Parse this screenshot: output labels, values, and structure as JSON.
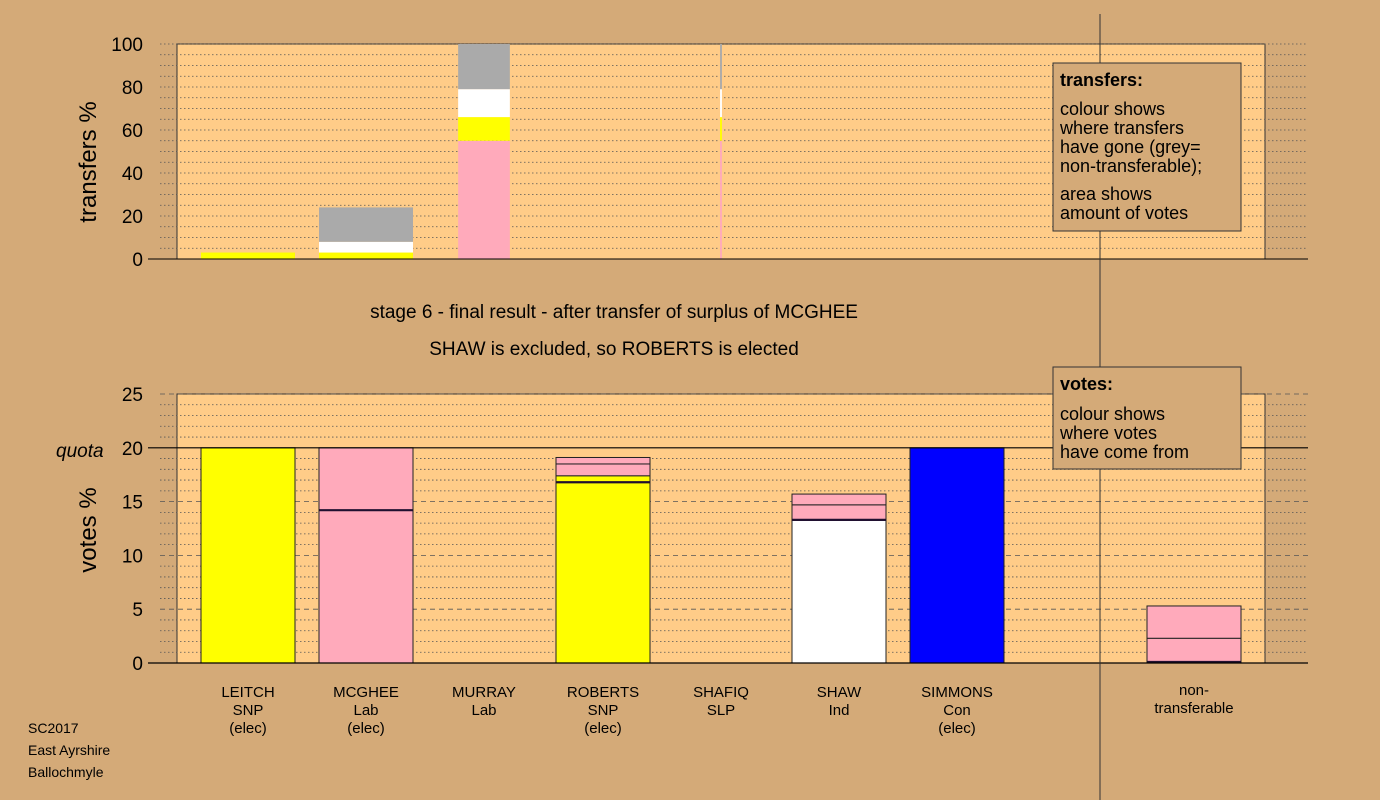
{
  "stage_title": "stage 6 - final result - after transfer of surplus of MCGHEE",
  "stage_subtitle": "SHAW is excluded, so ROBERTS is elected",
  "footer": [
    "SC2017",
    "East Ayrshire",
    "Ballochmyle"
  ],
  "colors": {
    "background": "#d4aa78",
    "plot": "#ffcc88",
    "SNP": "#ffff00",
    "Lab": "#ffaabb",
    "Ind": "#ffffff",
    "Con": "#0000ff",
    "non_transferable": "#aaaaaa"
  },
  "transfers_legend": {
    "title": "transfers:",
    "lines_1": [
      "colour shows",
      "where transfers",
      "have gone (grey=",
      "non-transferable);"
    ],
    "lines_2": [
      "area shows",
      "amount of votes"
    ]
  },
  "votes_legend": {
    "title": "votes:",
    "lines": [
      "colour shows",
      "where votes",
      "have come from"
    ]
  },
  "chart_data": [
    {
      "type": "bar",
      "title": "",
      "ylabel": "transfers %",
      "ylim": [
        0,
        100
      ],
      "yticks": [
        0,
        20,
        40,
        60,
        80,
        100
      ],
      "grid": "dotted",
      "bars": [
        {
          "candidate": "LEITCH",
          "width": 1,
          "segments": [
            {
              "party": "SNP",
              "value": 3
            }
          ]
        },
        {
          "candidate": "MCGHEE",
          "width": 1,
          "segments": [
            {
              "party": "SNP",
              "value": 3
            },
            {
              "party": "Ind",
              "value": 5
            },
            {
              "party": "non_transferable",
              "value": 16
            }
          ]
        },
        {
          "candidate": "MURRAY",
          "width": 0.55,
          "segments": [
            {
              "party": "Lab",
              "value": 55
            },
            {
              "party": "SNP",
              "value": 11
            },
            {
              "party": "Ind",
              "value": 13
            },
            {
              "party": "non_transferable",
              "value": 21
            }
          ]
        },
        {
          "candidate": "ROBERTS",
          "width": 0,
          "segments": []
        },
        {
          "candidate": "SHAFIQ",
          "width": 0.02,
          "segments": [
            {
              "party": "Lab",
              "value": 55
            },
            {
              "party": "SNP",
              "value": 11
            },
            {
              "party": "Ind",
              "value": 13
            },
            {
              "party": "non_transferable",
              "value": 21
            }
          ]
        },
        {
          "candidate": "SHAW",
          "width": 0,
          "segments": []
        },
        {
          "candidate": "SIMMONS",
          "width": 0,
          "segments": []
        }
      ]
    },
    {
      "type": "bar",
      "title": "",
      "ylabel": "votes %",
      "quota_label": "quota",
      "quota": 20,
      "ylim": [
        0,
        25
      ],
      "yticks": [
        0,
        5,
        10,
        15,
        20,
        25
      ],
      "grid": "dotted",
      "candidates": [
        {
          "name": "LEITCH",
          "party": "SNP",
          "note": "(elec)",
          "segments": [
            {
              "party": "SNP",
              "value": 20
            }
          ]
        },
        {
          "name": "MCGHEE",
          "party": "Lab",
          "note": "(elec)",
          "segments": [
            {
              "party": "Lab",
              "value": 14.2
            },
            {
              "party": "Lab",
              "value": 5.8
            }
          ]
        },
        {
          "name": "MURRAY",
          "party": "Lab",
          "note": "",
          "segments": []
        },
        {
          "name": "ROBERTS",
          "party": "SNP",
          "note": "(elec)",
          "segments": [
            {
              "party": "SNP",
              "value": 16.8
            },
            {
              "party": "SNP",
              "value": 0.6
            },
            {
              "party": "Lab",
              "value": 1.1
            },
            {
              "party": "Lab",
              "value": 0.6
            }
          ]
        },
        {
          "name": "SHAFIQ",
          "party": "SLP",
          "note": "",
          "segments": []
        },
        {
          "name": "SHAW",
          "party": "Ind",
          "note": "",
          "segments": [
            {
              "party": "Ind",
              "value": 13.3
            },
            {
              "party": "Lab",
              "value": 1.4
            },
            {
              "party": "Lab",
              "value": 1.0
            }
          ]
        },
        {
          "name": "SIMMONS",
          "party": "Con",
          "note": "(elec)",
          "segments": [
            {
              "party": "Con",
              "value": 20
            }
          ]
        }
      ],
      "non_transferable": {
        "label": [
          "non-",
          "transferable"
        ],
        "segments": [
          {
            "party": "Lab",
            "value": 0.1
          },
          {
            "party": "Lab",
            "value": 2.2
          },
          {
            "party": "Lab",
            "value": 3.0
          }
        ]
      }
    }
  ]
}
